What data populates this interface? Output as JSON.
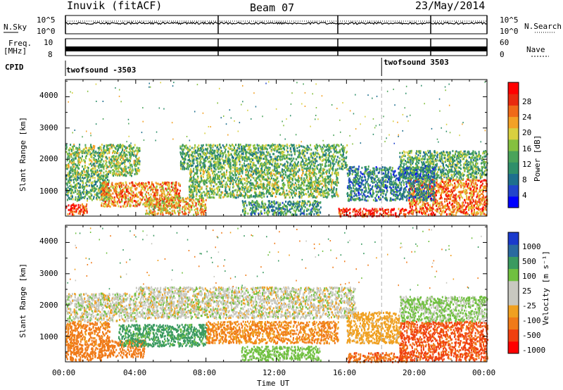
{
  "header": {
    "station": "Inuvik (fitACF)",
    "beam": "Beam 07",
    "date": "23/May/2014"
  },
  "strips": {
    "nsky_label": "N.Sky",
    "nsky_ticks": [
      "10^5",
      "10^0"
    ],
    "nsearch_label": "N.Search",
    "nsearch_ticks": [
      "10^5",
      "10^0"
    ],
    "freq_label_1": "Freq.",
    "freq_label_2": "[MHz]",
    "freq_ticks": [
      "10",
      "8"
    ],
    "nave_label": "Nave",
    "nave_ticks": [
      "60",
      "0"
    ],
    "cpid_label": "CPID",
    "cpid_segments": [
      {
        "label": "twofsound -3503",
        "start_hour": 0
      },
      {
        "label": "twofsound 3503",
        "start_hour": 18
      }
    ]
  },
  "chart_data": [
    {
      "type": "heatmap",
      "name": "power",
      "title": "",
      "xlabel": "Time UT",
      "ylabel": "Slant Range [km]",
      "xlim": [
        0,
        24
      ],
      "ylim": [
        180,
        4550
      ],
      "x_ticks": [
        "00:00",
        "04:00",
        "08:00",
        "12:00",
        "16:00",
        "20:00",
        "00:00"
      ],
      "y_ticks": [
        1000,
        2000,
        3000,
        4000
      ],
      "colorbar": {
        "label": "Power [dB]",
        "ticks": [
          28,
          24,
          20,
          16,
          12,
          8,
          4
        ],
        "colors": [
          "#0000ff",
          "#2244cc",
          "#1e6f8e",
          "#2f8f6a",
          "#4aa35a",
          "#85c040",
          "#d8d040",
          "#f3a125",
          "#f06a18",
          "#e92a0e",
          "#ff0000"
        ]
      },
      "scatter_regions": [
        {
          "t0": 0.0,
          "t1": 1.2,
          "r0": 250,
          "r1": 600,
          "v": 26
        },
        {
          "t0": 0.0,
          "t1": 2.5,
          "r0": 700,
          "r1": 1500,
          "v": 12
        },
        {
          "t0": 0.0,
          "t1": 4.2,
          "r0": 1500,
          "r1": 2500,
          "v": 14
        },
        {
          "t0": 2.0,
          "t1": 6.5,
          "r0": 500,
          "r1": 1300,
          "v": 22
        },
        {
          "t0": 4.5,
          "t1": 8.0,
          "r0": 250,
          "r1": 800,
          "v": 20
        },
        {
          "t0": 6.5,
          "t1": 16.0,
          "r0": 1700,
          "r1": 2500,
          "v": 12
        },
        {
          "t0": 7.0,
          "t1": 15.5,
          "r0": 800,
          "r1": 1700,
          "v": 14
        },
        {
          "t0": 10.0,
          "t1": 14.5,
          "r0": 250,
          "r1": 700,
          "v": 10
        },
        {
          "t0": 15.5,
          "t1": 19.5,
          "r0": 200,
          "r1": 450,
          "v": 28
        },
        {
          "t0": 19.5,
          "t1": 24.0,
          "r0": 250,
          "r1": 1400,
          "v": 24
        },
        {
          "t0": 19.0,
          "t1": 24.0,
          "r0": 1400,
          "r1": 2300,
          "v": 12
        },
        {
          "t0": 16.0,
          "t1": 21.0,
          "r0": 700,
          "r1": 1800,
          "v": 8
        }
      ]
    },
    {
      "type": "heatmap",
      "name": "velocity",
      "title": "",
      "xlabel": "Time UT",
      "ylabel": "Slant Range [km]",
      "xlim": [
        0,
        24
      ],
      "ylim": [
        180,
        4550
      ],
      "x_ticks": [
        "00:00",
        "04:00",
        "08:00",
        "12:00",
        "16:00",
        "20:00",
        "00:00"
      ],
      "y_ticks": [
        1000,
        2000,
        3000,
        4000
      ],
      "colorbar": {
        "label": "Velocity [m s⁻¹]",
        "ticks": [
          "1000",
          "500",
          "100",
          "25",
          "-25",
          "-100",
          "-500",
          "-1000"
        ],
        "colors": [
          "#ff0000",
          "#f04010",
          "#f07a18",
          "#f0a020",
          "#c8c8c0",
          "#c8c8c0",
          "#70c040",
          "#3a9a60",
          "#2a6aa0",
          "#1a3acc"
        ]
      },
      "scatter_regions": [
        {
          "t0": 0.0,
          "t1": 2.0,
          "r0": 250,
          "r1": 700,
          "v": -300
        },
        {
          "t0": 0.0,
          "t1": 2.5,
          "r0": 700,
          "r1": 1500,
          "v": -150
        },
        {
          "t0": 0.0,
          "t1": 4.0,
          "r0": 1500,
          "r1": 2400,
          "v": 0
        },
        {
          "t0": 2.0,
          "t1": 4.5,
          "r0": 350,
          "r1": 900,
          "v": -200
        },
        {
          "t0": 3.0,
          "t1": 8.0,
          "r0": 700,
          "r1": 1400,
          "v": 150
        },
        {
          "t0": 4.0,
          "t1": 16.5,
          "r0": 1600,
          "r1": 2600,
          "v": 0
        },
        {
          "t0": 8.0,
          "t1": 15.5,
          "r0": 800,
          "r1": 1500,
          "v": -120
        },
        {
          "t0": 10.0,
          "t1": 14.5,
          "r0": 250,
          "r1": 700,
          "v": 60
        },
        {
          "t0": 16.0,
          "t1": 19.5,
          "r0": 200,
          "r1": 500,
          "v": -400
        },
        {
          "t0": 19.0,
          "t1": 24.0,
          "r0": 250,
          "r1": 1500,
          "v": -600
        },
        {
          "t0": 19.0,
          "t1": 24.0,
          "r0": 1500,
          "r1": 2300,
          "v": 40
        },
        {
          "t0": 16.0,
          "t1": 19.0,
          "r0": 800,
          "r1": 1800,
          "v": -60
        }
      ]
    }
  ]
}
